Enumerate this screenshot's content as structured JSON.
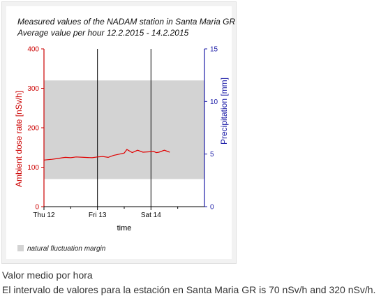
{
  "chart_data": {
    "type": "line",
    "title_line1": "Measured values of the NADAM station in Santa Maria GR",
    "title_line2": "Average value per hour 12.2.2015 - 14.2.2015",
    "xlabel": "time",
    "ylabel_left": "Ambient dose rate [nSv/h]",
    "ylabel_right": "Precipitation [mm]",
    "x_ticks": [
      "Thu 12",
      "Fri 13",
      "Sat 14"
    ],
    "x_range_days": [
      0,
      3
    ],
    "ylim_left": [
      0,
      400
    ],
    "ylim_right": [
      0,
      15
    ],
    "yticks_left": [
      "0",
      "100",
      "200",
      "300",
      "400"
    ],
    "yticks_right": [
      "0",
      "5",
      "10",
      "15"
    ],
    "band": {
      "low": 70,
      "high": 320,
      "color": "#d3d3d3",
      "label": "natural fluctuation margin"
    },
    "series": [
      {
        "axis": "left",
        "color": "#e00000",
        "x": [
          0.0,
          0.06,
          0.15,
          0.25,
          0.35,
          0.4,
          0.5,
          0.6,
          0.75,
          0.9,
          1.0,
          1.1,
          1.2,
          1.3,
          1.4,
          1.5,
          1.55,
          1.65,
          1.75,
          1.85,
          1.95,
          2.05,
          2.1,
          2.15,
          2.25,
          2.35
        ],
        "values": [
          118,
          119,
          120,
          122,
          124,
          125,
          124,
          126,
          125,
          124,
          126,
          127,
          125,
          130,
          133,
          136,
          145,
          137,
          143,
          138,
          139,
          140,
          137,
          138,
          143,
          138
        ]
      }
    ]
  },
  "captions": {
    "line1": "Valor medio por hora",
    "line2": "El intervalo de valores para la estación en Santa Maria GR is 70 nSv/h and 320 nSv/h."
  }
}
